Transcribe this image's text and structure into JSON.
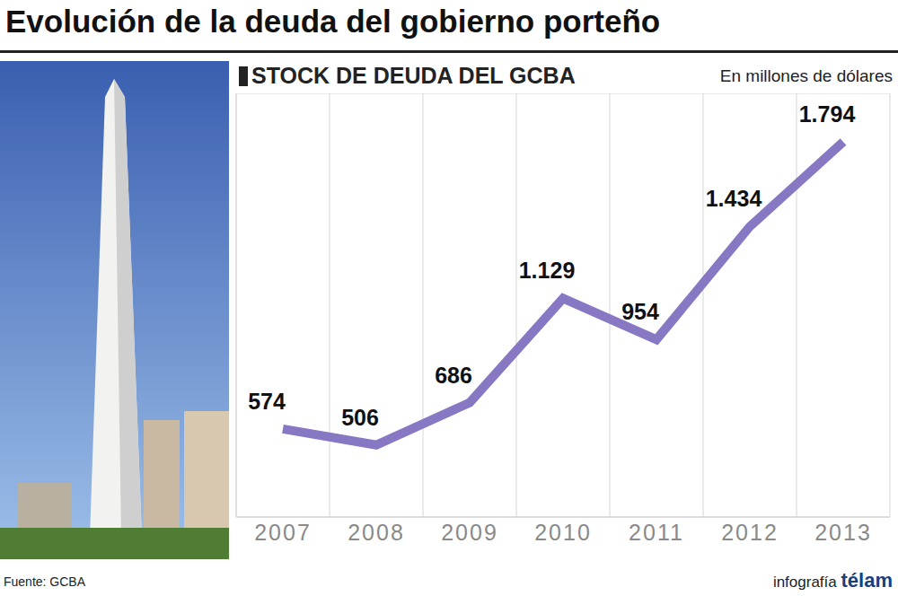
{
  "chart_data": {
    "type": "line",
    "title": "Evolución de la deuda del gobierno porteño",
    "subtitle": "STOCK DE DEUDA DEL GCBA",
    "ylabel": "En millones de dólares",
    "source": "Fuente: GCBA",
    "credit": "infografía télam",
    "categories": [
      "2007",
      "2008",
      "2009",
      "2010",
      "2011",
      "2012",
      "2013"
    ],
    "values": [
      574,
      506,
      686,
      1129,
      954,
      1434,
      1794
    ],
    "value_labels": [
      "574",
      "506",
      "686",
      "1.129",
      "954",
      "1.434",
      "1.794"
    ],
    "color": "#8878c3",
    "ylim": [
      200,
      2000
    ],
    "yticks": [
      200,
      500,
      800,
      1100,
      1400,
      1700,
      2000
    ],
    "grid": true,
    "data_labels": true,
    "tick_labels": "x"
  }
}
